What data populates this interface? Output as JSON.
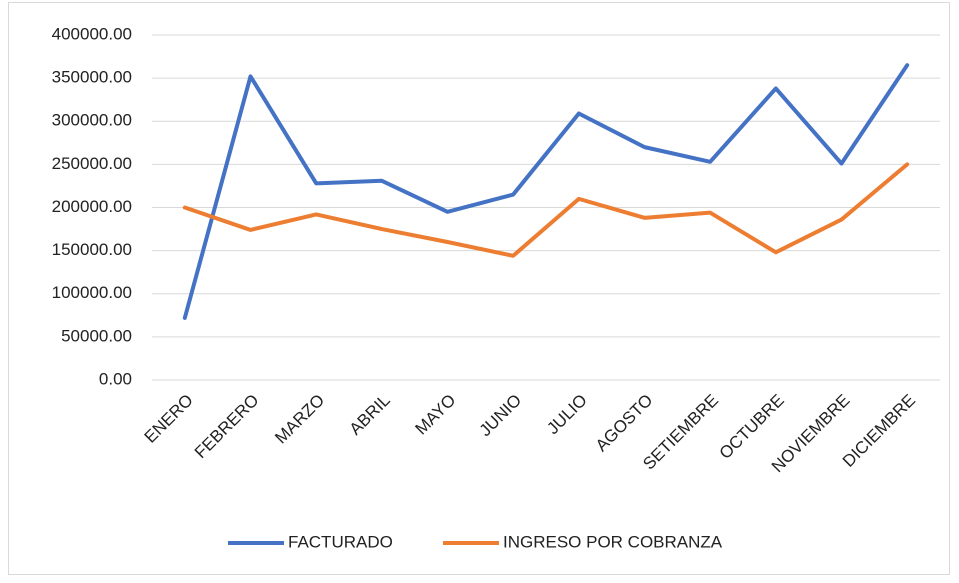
{
  "chart_data": {
    "type": "line",
    "categories": [
      "ENERO",
      "FEBRERO",
      "MARZO",
      "ABRIL",
      "MAYO",
      "JUNIO",
      "JULIO",
      "AGOSTO",
      "SETIEMBRE",
      "OCTUBRE",
      "NOVIEMBRE",
      "DICIEMBRE"
    ],
    "series": [
      {
        "name": "FACTURADO",
        "color": "#4472c4",
        "values": [
          72000,
          352000,
          228000,
          231000,
          195000,
          215000,
          309000,
          270000,
          253000,
          338000,
          251000,
          365000
        ]
      },
      {
        "name": "INGRESO POR COBRANZA",
        "color": "#ed7d31",
        "values": [
          200000,
          174000,
          192000,
          175000,
          160000,
          144000,
          210000,
          188000,
          194000,
          148000,
          186000,
          250000
        ]
      }
    ],
    "ylim": [
      0,
      400000
    ],
    "yticks": [
      {
        "value": 0,
        "label": "0.00"
      },
      {
        "value": 50000,
        "label": "50000.00"
      },
      {
        "value": 100000,
        "label": "100000.00"
      },
      {
        "value": 150000,
        "label": "150000.00"
      },
      {
        "value": 200000,
        "label": "200000.00"
      },
      {
        "value": 250000,
        "label": "250000.00"
      },
      {
        "value": 300000,
        "label": "300000.00"
      },
      {
        "value": 350000,
        "label": "350000.00"
      },
      {
        "value": 400000,
        "label": "400000.00"
      }
    ],
    "grid": true,
    "legend": "bottom"
  }
}
